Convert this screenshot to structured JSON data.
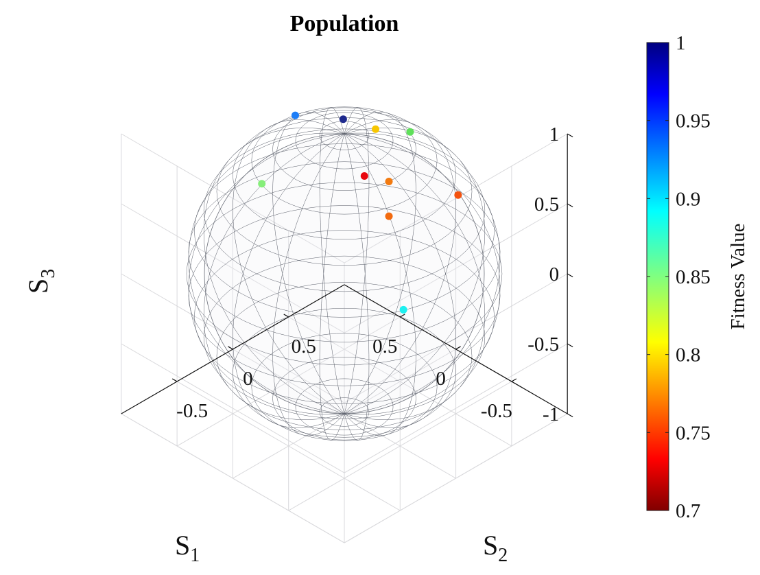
{
  "chart_data": {
    "type": "scatter",
    "title": "Population",
    "axes": {
      "x": {
        "symbol": "S",
        "subscript": "1",
        "lim": [
          -1,
          1
        ],
        "ticks": [
          "-0.5",
          "0",
          "0.5"
        ],
        "tick_values": [
          -0.5,
          0,
          0.5
        ]
      },
      "y": {
        "symbol": "S",
        "subscript": "2",
        "lim": [
          -1,
          1
        ],
        "ticks": [
          "-0.5",
          "0",
          "0.5"
        ],
        "tick_values": [
          -0.5,
          0,
          0.5
        ]
      },
      "z": {
        "symbol": "S",
        "subscript": "3",
        "lim": [
          -1,
          1
        ],
        "ticks": [
          "1",
          "0.5",
          "0",
          "-0.5",
          "-1"
        ],
        "tick_values": [
          1,
          0.5,
          0,
          -0.5,
          -1
        ]
      }
    },
    "grid": true,
    "sphere": {
      "radius": 1,
      "wireframe": true
    },
    "colorbar": {
      "label": "Fitness Value",
      "colormap": "jet",
      "lim": [
        0.7,
        1
      ],
      "ticks": [
        "1",
        "0.95",
        "0.9",
        "0.85",
        "0.8",
        "0.75",
        "0.7"
      ],
      "tick_values": [
        1,
        0.95,
        0.9,
        0.85,
        0.8,
        0.75,
        0.7
      ]
    },
    "points": [
      {
        "x": -0.33,
        "y": -0.15,
        "z": 0.92,
        "fitness": 0.72,
        "color": "#e8070e"
      },
      {
        "x": -0.05,
        "y": 0.23,
        "z": 0.95,
        "fitness": 0.79,
        "color": "#f7c600"
      },
      {
        "x": -0.15,
        "y": 0.44,
        "z": 0.88,
        "fitness": 0.85,
        "color": "#5fe05a"
      },
      {
        "x": -0.6,
        "y": -0.2,
        "z": 0.78,
        "fitness": 0.76,
        "color": "#f26a0f"
      },
      {
        "x": -0.45,
        "y": -0.05,
        "z": 0.89,
        "fitness": 0.77,
        "color": "#f27a10"
      },
      {
        "x": -0.88,
        "y": -0.35,
        "z": 0.31,
        "fitness": 0.89,
        "color": "#1ef0f0"
      },
      {
        "x": 0.14,
        "y": 0.13,
        "z": 0.98,
        "fitness": 0.99,
        "color": "#1f2a8e"
      },
      {
        "x": -0.03,
        "y": 0.99,
        "z": 0.12,
        "fitness": 0.76,
        "color": "#f4520e"
      },
      {
        "x": 0.58,
        "y": 0.14,
        "z": 0.8,
        "fitness": 0.92,
        "color": "#1d7ef7"
      },
      {
        "x": 0.97,
        "y": 0.23,
        "z": 0.09,
        "fitness": 0.85,
        "color": "#86ee7a"
      }
    ]
  }
}
